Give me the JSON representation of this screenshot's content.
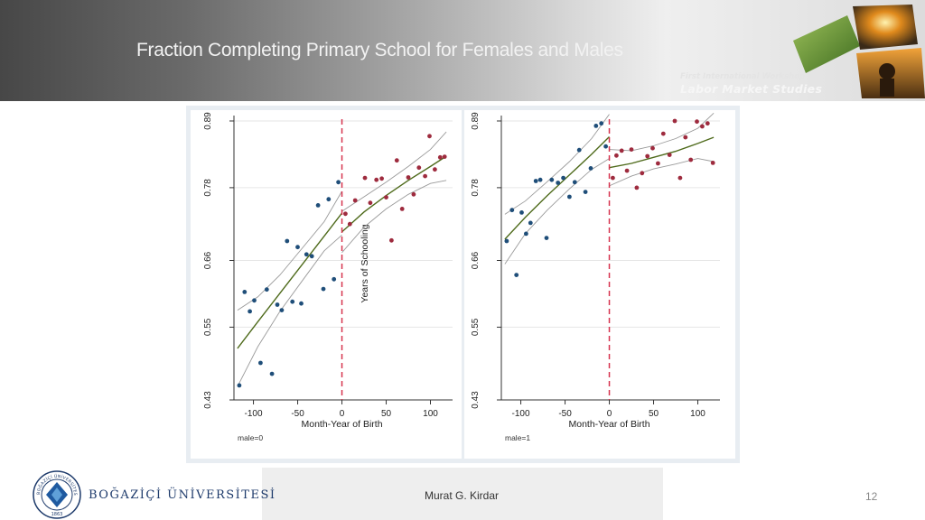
{
  "slide": {
    "title": "Fraction Completing Primary School for Females and Males",
    "workshop_line1": "First International Workshop on",
    "workshop_line2": "Labor Market Studies",
    "author": "Murat G. Kirdar",
    "page_number": "12",
    "university": "BOĞAZİÇİ ÜNİVERSİTESİ",
    "logo_text": "BOĞAZİÇİ ÜNİVERSİTESİ",
    "logo_year": "1863"
  },
  "colors": {
    "pre": "#1f4e79",
    "post": "#9e2b3e",
    "fit": "#4f6b1c",
    "ci": "#9a9a9a",
    "cutoff": "#d6334e"
  },
  "chart_data": [
    {
      "type": "scatter",
      "panel_label": "male=0",
      "xlabel": "Month-Year of Birth",
      "ylabel": "Years of Schooling",
      "x_ticks": [
        -100,
        -50,
        0,
        50,
        100
      ],
      "x_tick_labels": [
        "-100",
        "-50",
        "0",
        "50",
        "100"
      ],
      "y_ticks": [
        0.43,
        0.55,
        0.66,
        0.78,
        0.89
      ],
      "y_tick_labels": [
        "0.43",
        "0.55",
        "0.66",
        "0.78",
        "0.89"
      ],
      "xlim": [
        -122,
        125
      ],
      "ylim": [
        0.43,
        0.89
      ],
      "cutoff": 0,
      "series": [
        {
          "name": "pre",
          "points": [
            [
              -116,
              0.454
            ],
            [
              -110,
              0.608
            ],
            [
              -104,
              0.576
            ],
            [
              -99,
              0.594
            ],
            [
              -92,
              0.491
            ],
            [
              -85,
              0.612
            ],
            [
              -79,
              0.473
            ],
            [
              -73,
              0.587
            ],
            [
              -68,
              0.578
            ],
            [
              -62,
              0.692
            ],
            [
              -56,
              0.592
            ],
            [
              -50,
              0.682
            ],
            [
              -46,
              0.589
            ],
            [
              -40,
              0.67
            ],
            [
              -34,
              0.667
            ],
            [
              -27,
              0.751
            ],
            [
              -21,
              0.613
            ],
            [
              -15,
              0.761
            ],
            [
              -9,
              0.629
            ],
            [
              -4,
              0.789
            ]
          ]
        },
        {
          "name": "post",
          "points": [
            [
              4,
              0.737
            ],
            [
              9,
              0.72
            ],
            [
              15,
              0.759
            ],
            [
              26,
              0.796
            ],
            [
              32,
              0.755
            ],
            [
              39,
              0.793
            ],
            [
              45,
              0.795
            ],
            [
              50,
              0.764
            ],
            [
              56,
              0.693
            ],
            [
              62,
              0.825
            ],
            [
              68,
              0.745
            ],
            [
              75,
              0.797
            ],
            [
              81,
              0.769
            ],
            [
              87,
              0.813
            ],
            [
              94,
              0.799
            ],
            [
              99,
              0.865
            ],
            [
              105,
              0.81
            ],
            [
              111,
              0.83
            ],
            [
              116,
              0.831
            ]
          ]
        }
      ],
      "fit_lines": [
        {
          "name": "pre_fit",
          "points": [
            [
              -118,
              0.515
            ],
            [
              -95,
              0.559
            ],
            [
              -70,
              0.606
            ],
            [
              -45,
              0.653
            ],
            [
              -20,
              0.7
            ],
            [
              0,
              0.738
            ]
          ]
        },
        {
          "name": "pre_ci_upper",
          "points": [
            [
              -118,
              0.578
            ],
            [
              -95,
              0.6
            ],
            [
              -70,
              0.636
            ],
            [
              -45,
              0.68
            ],
            [
              -20,
              0.724
            ],
            [
              0,
              0.774
            ]
          ]
        },
        {
          "name": "pre_ci_lower",
          "points": [
            [
              -118,
              0.452
            ],
            [
              -95,
              0.518
            ],
            [
              -70,
              0.576
            ],
            [
              -45,
              0.626
            ],
            [
              -20,
              0.676
            ],
            [
              0,
              0.702
            ]
          ]
        },
        {
          "name": "post_fit",
          "points": [
            [
              0,
              0.707
            ],
            [
              25,
              0.74
            ],
            [
              50,
              0.767
            ],
            [
              75,
              0.792
            ],
            [
              100,
              0.815
            ],
            [
              118,
              0.832
            ]
          ]
        },
        {
          "name": "post_ci_upper",
          "points": [
            [
              0,
              0.741
            ],
            [
              25,
              0.765
            ],
            [
              50,
              0.789
            ],
            [
              75,
              0.815
            ],
            [
              100,
              0.843
            ],
            [
              118,
              0.872
            ]
          ]
        },
        {
          "name": "post_ci_lower",
          "points": [
            [
              0,
              0.673
            ],
            [
              25,
              0.715
            ],
            [
              50,
              0.745
            ],
            [
              75,
              0.769
            ],
            [
              100,
              0.787
            ],
            [
              118,
              0.792
            ]
          ]
        }
      ]
    },
    {
      "type": "scatter",
      "panel_label": "male=1",
      "xlabel": "Month-Year of Birth",
      "ylabel": "",
      "x_ticks": [
        -100,
        -50,
        0,
        50,
        100
      ],
      "x_tick_labels": [
        "-100",
        "-50",
        "0",
        "50",
        "100"
      ],
      "y_ticks": [
        0.43,
        0.55,
        0.66,
        0.78,
        0.89
      ],
      "y_tick_labels": [
        "0.43",
        "0.55",
        "0.66",
        "0.78",
        "0.89"
      ],
      "xlim": [
        -122,
        125
      ],
      "ylim": [
        0.43,
        0.89
      ],
      "cutoff": 0,
      "series": [
        {
          "name": "pre",
          "points": [
            [
              -116,
              0.692
            ],
            [
              -110,
              0.743
            ],
            [
              -105,
              0.636
            ],
            [
              -99,
              0.739
            ],
            [
              -94,
              0.704
            ],
            [
              -89,
              0.722
            ],
            [
              -83,
              0.791
            ],
            [
              -78,
              0.793
            ],
            [
              -71,
              0.697
            ],
            [
              -65,
              0.793
            ],
            [
              -58,
              0.788
            ],
            [
              -52,
              0.796
            ],
            [
              -45,
              0.765
            ],
            [
              -39,
              0.789
            ],
            [
              -34,
              0.842
            ],
            [
              -27,
              0.773
            ],
            [
              -21,
              0.812
            ],
            [
              -15,
              0.882
            ],
            [
              -9,
              0.886
            ],
            [
              -4,
              0.848
            ]
          ]
        },
        {
          "name": "post",
          "points": [
            [
              4,
              0.796
            ],
            [
              8,
              0.833
            ],
            [
              14,
              0.841
            ],
            [
              20,
              0.808
            ],
            [
              25,
              0.843
            ],
            [
              31,
              0.78
            ],
            [
              37,
              0.804
            ],
            [
              43,
              0.832
            ],
            [
              49,
              0.845
            ],
            [
              55,
              0.82
            ],
            [
              61,
              0.869
            ],
            [
              68,
              0.834
            ],
            [
              74,
              0.89
            ],
            [
              80,
              0.796
            ],
            [
              86,
              0.863
            ],
            [
              92,
              0.826
            ],
            [
              99,
              0.889
            ],
            [
              105,
              0.881
            ],
            [
              111,
              0.886
            ],
            [
              117,
              0.821
            ]
          ]
        }
      ],
      "fit_lines": [
        {
          "name": "pre_fit",
          "points": [
            [
              -118,
              0.695
            ],
            [
              -95,
              0.731
            ],
            [
              -70,
              0.767
            ],
            [
              -45,
              0.801
            ],
            [
              -20,
              0.835
            ],
            [
              0,
              0.864
            ]
          ]
        },
        {
          "name": "pre_ci_upper",
          "points": [
            [
              -118,
              0.736
            ],
            [
              -95,
              0.758
            ],
            [
              -70,
              0.79
            ],
            [
              -45,
              0.823
            ],
            [
              -20,
              0.861
            ],
            [
              0,
              0.901
            ]
          ]
        },
        {
          "name": "pre_ci_lower",
          "points": [
            [
              -118,
              0.654
            ],
            [
              -95,
              0.704
            ],
            [
              -70,
              0.743
            ],
            [
              -45,
              0.778
            ],
            [
              -20,
              0.81
            ],
            [
              0,
              0.828
            ]
          ]
        },
        {
          "name": "post_fit",
          "points": [
            [
              0,
              0.813
            ],
            [
              25,
              0.82
            ],
            [
              50,
              0.83
            ],
            [
              75,
              0.84
            ],
            [
              100,
              0.853
            ],
            [
              118,
              0.863
            ]
          ]
        },
        {
          "name": "post_ci_upper",
          "points": [
            [
              0,
              0.843
            ],
            [
              25,
              0.841
            ],
            [
              50,
              0.849
            ],
            [
              75,
              0.861
            ],
            [
              100,
              0.878
            ],
            [
              118,
              0.903
            ]
          ]
        },
        {
          "name": "post_ci_lower",
          "points": [
            [
              0,
              0.783
            ],
            [
              25,
              0.799
            ],
            [
              50,
              0.811
            ],
            [
              75,
              0.819
            ],
            [
              100,
              0.828
            ],
            [
              118,
              0.823
            ]
          ]
        }
      ]
    }
  ]
}
